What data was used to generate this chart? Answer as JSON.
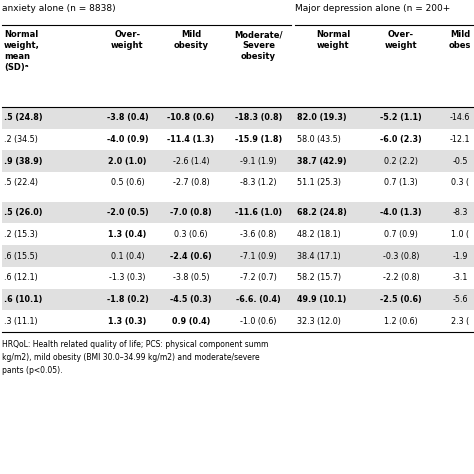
{
  "bg_color": "#ffffff",
  "shade_color": "#e0e0e0",
  "text_color": "#000000",
  "section1_header": "anxiety alone (n = 8838)",
  "section2_header": "Major depression alone (n = 200+",
  "col_headers": [
    "Normal\nweight,\nmean\n(SD)ᵃ",
    "Over-\nweight",
    "Mild\nobesity",
    "Moderate/\nSevere\nobesity",
    "Normal\nweight",
    "Over-\nweight",
    "Mild\nobes"
  ],
  "rows": [
    {
      "shaded": true,
      "spacer": false,
      "cells": [
        ".5 (24.8)",
        "-3.8 (0.4)",
        "-10.8 (0.6)",
        "-18.3 (0.8)",
        "82.0 (19.3)",
        "-5.2 (1.1)",
        "-14.6"
      ],
      "bold": [
        0,
        1,
        2,
        3,
        4,
        5
      ]
    },
    {
      "shaded": false,
      "spacer": false,
      "cells": [
        ".2 (34.5)",
        "-4.0 (0.9)",
        "-11.4 (1.3)",
        "-15.9 (1.8)",
        "58.0 (43.5)",
        "-6.0 (2.3)",
        "-12.1"
      ],
      "bold": [
        1,
        2,
        3,
        5
      ]
    },
    {
      "shaded": true,
      "spacer": false,
      "cells": [
        ".9 (38.9)",
        "2.0 (1.0)",
        "-2.6 (1.4)",
        "-9.1 (1.9)",
        "38.7 (42.9)",
        "0.2 (2.2)",
        "-0.5"
      ],
      "bold": [
        0,
        1,
        4
      ]
    },
    {
      "shaded": false,
      "spacer": false,
      "cells": [
        ".5 (22.4)",
        "0.5 (0.6)",
        "-2.7 (0.8)",
        "-8.3 (1.2)",
        "51.1 (25.3)",
        "0.7 (1.3)",
        "0.3 ("
      ],
      "bold": []
    },
    {
      "shaded": false,
      "spacer": true,
      "cells": [
        "",
        "",
        "",
        "",
        "",
        "",
        ""
      ],
      "bold": []
    },
    {
      "shaded": true,
      "spacer": false,
      "cells": [
        ".5 (26.0)",
        "-2.0 (0.5)",
        "-7.0 (0.8)",
        "-11.6 (1.0)",
        "68.2 (24.8)",
        "-4.0 (1.3)",
        "-8.3"
      ],
      "bold": [
        0,
        1,
        2,
        3,
        4,
        5
      ]
    },
    {
      "shaded": false,
      "spacer": false,
      "cells": [
        ".2 (15.3)",
        "1.3 (0.4)",
        "0.3 (0.6)",
        "-3.6 (0.8)",
        "48.2 (18.1)",
        "0.7 (0.9)",
        "1.0 ("
      ],
      "bold": [
        1
      ]
    },
    {
      "shaded": true,
      "spacer": false,
      "cells": [
        ".6 (15.5)",
        "0.1 (0.4)",
        "-2.4 (0.6)",
        "-7.1 (0.9)",
        "38.4 (17.1)",
        "-0.3 (0.8)",
        "-1.9"
      ],
      "bold": [
        2
      ]
    },
    {
      "shaded": false,
      "spacer": false,
      "cells": [
        ".6 (12.1)",
        "-1.3 (0.3)",
        "-3.8 (0.5)",
        "-7.2 (0.7)",
        "58.2 (15.7)",
        "-2.2 (0.8)",
        "-3.1"
      ],
      "bold": []
    },
    {
      "shaded": true,
      "spacer": false,
      "cells": [
        ".6 (10.1)",
        "-1.8 (0.2)",
        "-4.5 (0.3)",
        "-6.6. (0.4)",
        "49.9 (10.1)",
        "-2.5 (0.6)",
        "-5.6"
      ],
      "bold": [
        0,
        1,
        2,
        3,
        4,
        5
      ]
    },
    {
      "shaded": false,
      "spacer": false,
      "cells": [
        ".3 (11.1)",
        "1.3 (0.3)",
        "0.9 (0.4)",
        "-1.0 (0.6)",
        "32.3 (12.0)",
        "1.2 (0.6)",
        "2.3 ("
      ],
      "bold": [
        1,
        2
      ]
    }
  ],
  "footnote_lines": [
    "HRQoL: Health related quality of life; PCS: physical component summ",
    "kg/m2), mild obesity (BMI 30.0–34.99 kg/m2) and moderate/severe",
    "pants (p<0.05)."
  ]
}
